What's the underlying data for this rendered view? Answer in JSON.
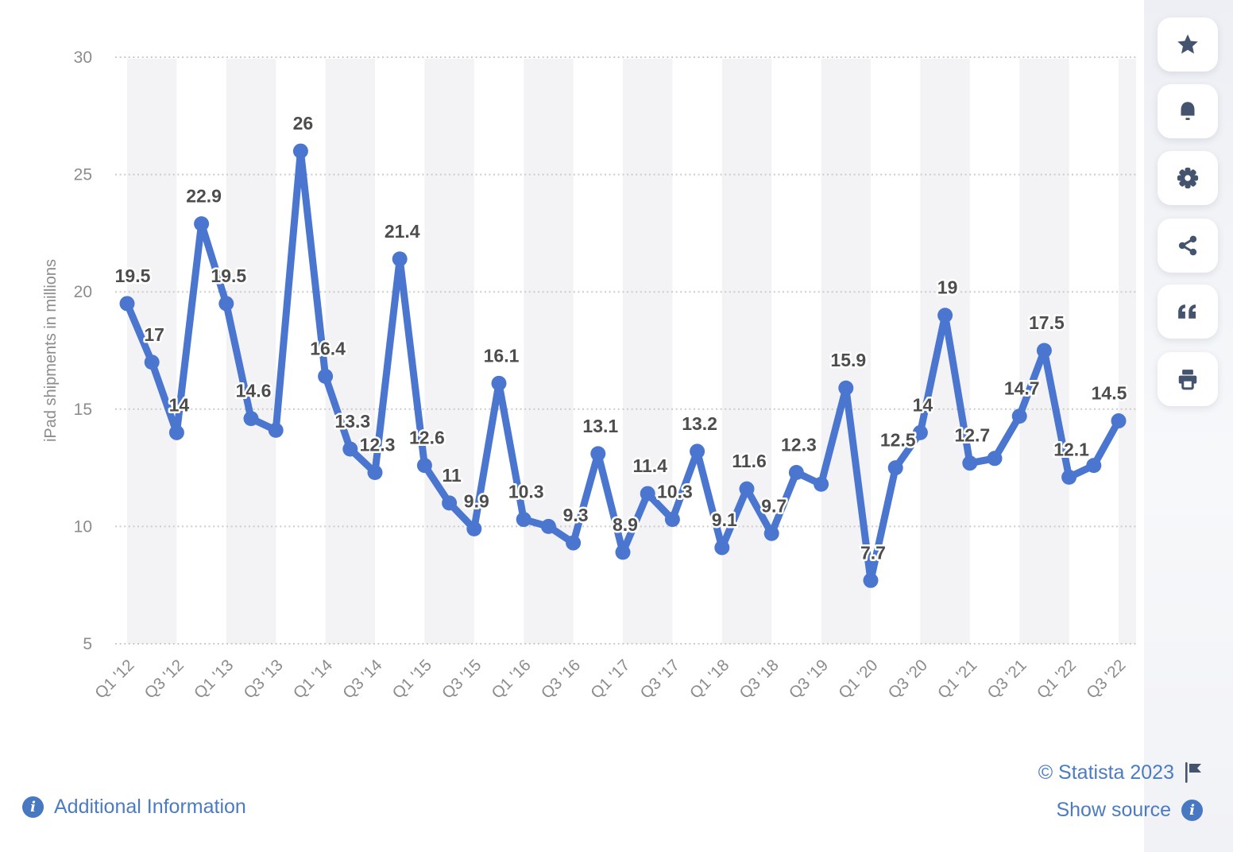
{
  "chart_data": {
    "type": "line",
    "title": "",
    "xlabel": "",
    "ylabel": "iPad shipments in millions",
    "ylim": [
      5,
      30
    ],
    "yticks": [
      5,
      10,
      15,
      20,
      25,
      30
    ],
    "grid": "horizontal dotted",
    "legend": "none",
    "line_color": "#4a76d0",
    "values": [
      19.5,
      17,
      14,
      22.9,
      19.5,
      14.6,
      14.1,
      26,
      16.4,
      13.3,
      12.3,
      21.4,
      12.6,
      11,
      9.9,
      16.1,
      10.3,
      10,
      9.3,
      13.1,
      8.9,
      11.4,
      10.3,
      13.2,
      9.1,
      11.6,
      9.7,
      12.3,
      11.8,
      15.9,
      7.7,
      12.5,
      14,
      19,
      12.7,
      12.9,
      14.7,
      17.5,
      12.1,
      12.6,
      14.5
    ],
    "point_labels": [
      "19.5",
      "17",
      "14",
      "22.9",
      "19.5",
      "14.6",
      null,
      "26",
      "16.4",
      "13.3",
      "12.3",
      "21.4",
      "12.6",
      "11",
      "9.9",
      "16.1",
      "10.3",
      null,
      "9.3",
      "13.1",
      "8.9",
      "11.4",
      "10.3",
      "13.2",
      "9.1",
      "11.6",
      "9.7",
      "12.3",
      null,
      "15.9",
      "7.7",
      "12.5",
      "14",
      "19",
      "12.7",
      null,
      "14.7",
      "17.5",
      "12.1",
      null,
      "14.5"
    ],
    "xtick_labels": [
      "Q1 '12",
      "Q3 '12",
      "Q1 '13",
      "Q3 '13",
      "Q1 '14",
      "Q3 '14",
      "Q1 '15",
      "Q3 '15",
      "Q1 '16",
      "Q3 '16",
      "Q1 '17",
      "Q3 '17",
      "Q1 '18",
      "Q3 '18",
      "Q3 '19",
      "Q1 '20",
      "Q3 '20",
      "Q1 '21",
      "Q3 '21",
      "Q1 '22",
      "Q3 '22"
    ],
    "xtick_every_n_points": 2
  },
  "sidebar": {
    "icons": [
      "star-icon",
      "bell-icon",
      "gear-icon",
      "share-icon",
      "quote-icon",
      "print-icon"
    ]
  },
  "footer": {
    "additional_info_label": "Additional Information",
    "copyright": "© Statista 2023",
    "show_source_label": "Show source"
  },
  "colors": {
    "accent_blue": "#4a76d0",
    "link_blue": "#4b7bc3",
    "data_label_gray": "#4d4d4d",
    "axis_gray": "#8c8c8c",
    "grid_gray": "#cbcbcb",
    "stripe_gray": "#f3f3f6",
    "icon_slate": "#44536e",
    "sidebar_bg": "#eff1f4"
  }
}
